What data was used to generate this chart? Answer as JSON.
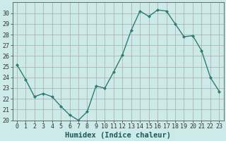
{
  "x": [
    0,
    1,
    2,
    3,
    4,
    5,
    6,
    7,
    8,
    9,
    10,
    11,
    12,
    13,
    14,
    15,
    16,
    17,
    18,
    19,
    20,
    21,
    22,
    23
  ],
  "y": [
    25.2,
    23.8,
    22.2,
    22.5,
    22.2,
    21.3,
    20.5,
    20.0,
    20.8,
    23.2,
    23.0,
    24.5,
    26.1,
    28.4,
    30.2,
    29.7,
    30.3,
    30.2,
    29.0,
    27.8,
    27.9,
    26.5,
    24.0,
    22.7
  ],
  "line_color": "#2e7d6e",
  "marker": "D",
  "marker_size": 2.0,
  "bg_color": "#cceae8",
  "grid_color": "#aaaaaa",
  "xlabel": "Humidex (Indice chaleur)",
  "xlim": [
    -0.5,
    23.5
  ],
  "ylim": [
    20,
    31
  ],
  "yticks": [
    20,
    21,
    22,
    23,
    24,
    25,
    26,
    27,
    28,
    29,
    30
  ],
  "xticks": [
    0,
    1,
    2,
    3,
    4,
    5,
    6,
    7,
    8,
    9,
    10,
    11,
    12,
    13,
    14,
    15,
    16,
    17,
    18,
    19,
    20,
    21,
    22,
    23
  ],
  "xlabel_fontsize": 7.5,
  "tick_fontsize": 6.0,
  "spine_color": "#555555",
  "line_width": 1.0
}
